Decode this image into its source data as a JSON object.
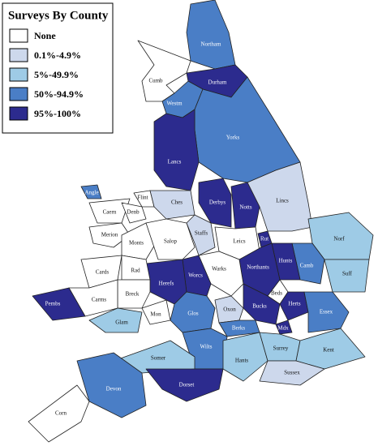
{
  "title": "Surveys By County",
  "legend": [
    {
      "label": "None",
      "color": "#ffffff"
    },
    {
      "label": "0.1%-4.9%",
      "color": "#cdd8ec"
    },
    {
      "label": "5%-49.9%",
      "color": "#9ecbe6"
    },
    {
      "label": "50%-94.9%",
      "color": "#4a7ec6"
    },
    {
      "label": "95%-100%",
      "color": "#2c2b8e"
    }
  ],
  "counties": [
    {
      "name": "Northam",
      "class": "50%-94.9%"
    },
    {
      "name": "Cumb",
      "class": "None"
    },
    {
      "name": "Durham",
      "class": "95%-100%"
    },
    {
      "name": "Westm",
      "class": "50%-94.9%"
    },
    {
      "name": "Yorks",
      "class": "50%-94.9%"
    },
    {
      "name": "Lancs",
      "class": "95%-100%"
    },
    {
      "name": "Angle",
      "class": "50%-94.9%"
    },
    {
      "name": "Flint",
      "class": "None"
    },
    {
      "name": "Caern",
      "class": "None"
    },
    {
      "name": "Denb",
      "class": "None"
    },
    {
      "name": "Ches",
      "class": "0.1%-4.9%"
    },
    {
      "name": "Lincs",
      "class": "0.1%-4.9%"
    },
    {
      "name": "Derbys",
      "class": "95%-100%"
    },
    {
      "name": "Notts",
      "class": "95%-100%"
    },
    {
      "name": "Merion",
      "class": "None"
    },
    {
      "name": "Monts",
      "class": "None"
    },
    {
      "name": "Salop",
      "class": "None"
    },
    {
      "name": "Staffs",
      "class": "0.1%-4.9%"
    },
    {
      "name": "Leics",
      "class": "None"
    },
    {
      "name": "Rut",
      "class": "95%-100%"
    },
    {
      "name": "Norf",
      "class": "5%-49.9%"
    },
    {
      "name": "Suff",
      "class": "5%-49.9%"
    },
    {
      "name": "Camb",
      "class": "50%-94.9%"
    },
    {
      "name": "Hunts",
      "class": "95%-100%"
    },
    {
      "name": "Northants",
      "class": "95%-100%"
    },
    {
      "name": "Warks",
      "class": "None"
    },
    {
      "name": "Worcs",
      "class": "95%-100%"
    },
    {
      "name": "Herefs",
      "class": "95%-100%"
    },
    {
      "name": "Cards",
      "class": "None"
    },
    {
      "name": "Rad",
      "class": "None"
    },
    {
      "name": "Breck",
      "class": "None"
    },
    {
      "name": "Carms",
      "class": "None"
    },
    {
      "name": "Pembs",
      "class": "95%-100%"
    },
    {
      "name": "Glam",
      "class": "5%-49.9%"
    },
    {
      "name": "Mon",
      "class": "None"
    },
    {
      "name": "Glos",
      "class": "50%-94.9%"
    },
    {
      "name": "Oxon",
      "class": "0.1%-4.9%"
    },
    {
      "name": "Beds",
      "class": "None"
    },
    {
      "name": "Herts",
      "class": "95%-100%"
    },
    {
      "name": "Bucks",
      "class": "95%-100%"
    },
    {
      "name": "Essex",
      "class": "50%-94.9%"
    },
    {
      "name": "Mdx",
      "class": "95%-100%"
    },
    {
      "name": "Berks",
      "class": "50%-94.9%"
    },
    {
      "name": "Wilts",
      "class": "50%-94.9%"
    },
    {
      "name": "Somer",
      "class": "5%-49.9%"
    },
    {
      "name": "Hants",
      "class": "5%-49.9%"
    },
    {
      "name": "Surrey",
      "class": "5%-49.9%"
    },
    {
      "name": "Kent",
      "class": "5%-49.9%"
    },
    {
      "name": "Sussex",
      "class": "0.1%-4.9%"
    },
    {
      "name": "Devon",
      "class": "50%-94.9%"
    },
    {
      "name": "Dorset",
      "class": "95%-100%"
    },
    {
      "name": "Corn",
      "class": "None"
    }
  ]
}
